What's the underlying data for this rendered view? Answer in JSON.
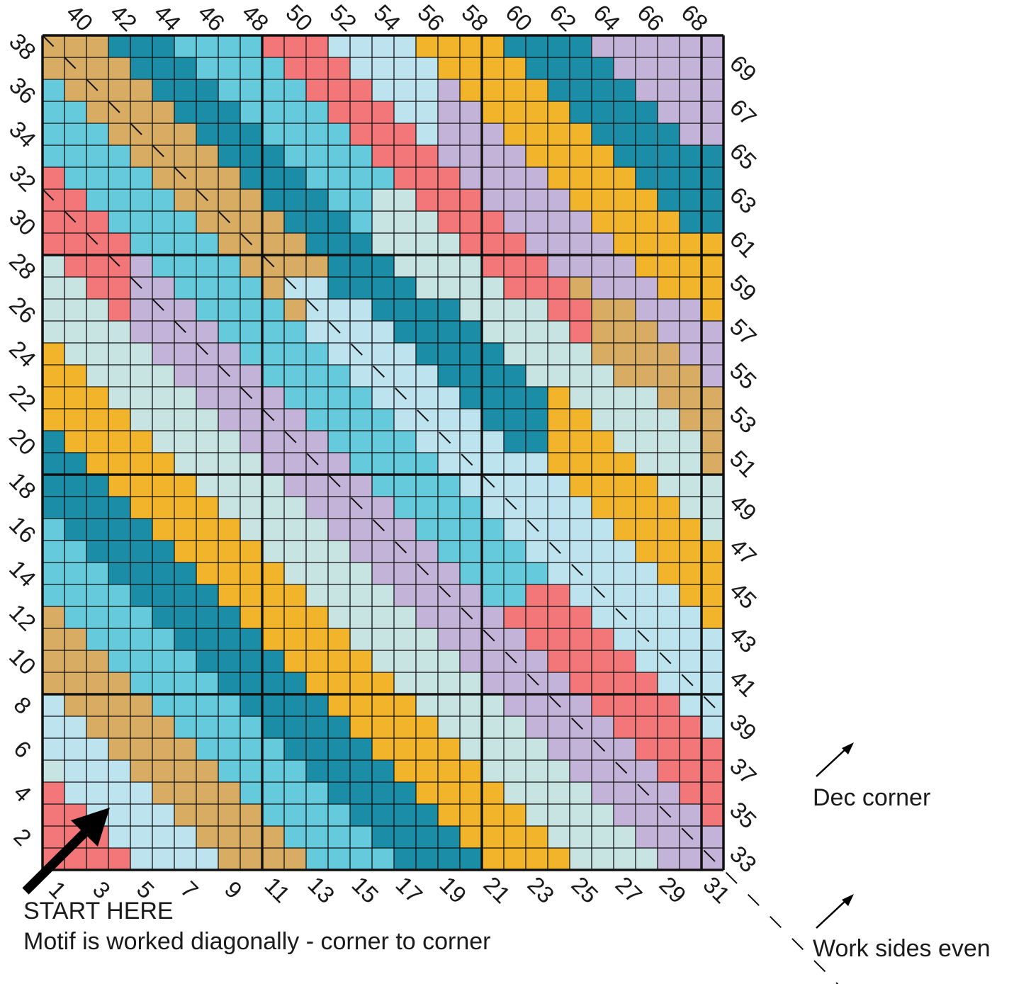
{
  "palette": {
    "T": "#d8ad63",
    "D": "#1b8da6",
    "C": "#66cadd",
    "R": "#f37778",
    "L": "#bde3ef",
    "M": "#c7e3e2",
    "P": "#c4b3d8",
    "Y": "#f2b42a",
    "grid": "#111111",
    "text": "#1a1a1a"
  },
  "grid_rows": [
    "TTTDDDCCCCRRRLLLLYYYYDDDDPPPPPP",
    "TTTTDDDCCCCRRRLLLLYYYYDDDDPPPPP",
    "CTTTTDDDCCCCRRRLLLPYYYYDDDDPPPP",
    "CCTTTTDDDCCCCRRRLLPPYYYYDDDDPPP",
    "CCCTTTTDDDCCCCRRRLPPPYYYYDDDDPP",
    "CCCCTTTTDDDCCCCRRRPPPPYYYYDDDDD",
    "RCCCCTTTTDDDCCCCRRRPPPPYYYYDDDD",
    "RRCCCCTTTTDDDCCMMRRRPPPPYYYYDDD",
    "RRRCCCCTTTTDDDCMMMRRRPPPPYYYYDD",
    "RRRRCCCCTTTTDDDMMMMRRRPPPPYYYYY",
    "MRRRPCCCCTTTTDDDMMMMRRRPPPPYYYY",
    "MMRRPPCCCCTLLDDDDMMMMRRRTPPPYYY",
    "MMMRPPPCCCCTLLLDDDDMMMMRRTTPPPY",
    "MMMMPPPPCCCCLLLLDDDDMMMMRTTTPPP",
    "YMMMMPPPPCCCCLLLLDDDDMMMMTTTTPP",
    "YYMMMMPPPPCCCCLLLLDDDDMMMMTTTTP",
    "YYYMMMMPPPPCCCCLLLLDDDDYMMMMTTT",
    "YYYYMMMMPPPPCCCCLLLLDDDYYMMMMTT",
    "DYYYYMMMMPPPPCCCCLLLLDDYYYMMMMT",
    "DDYYYYMMMMPPPPCCCCLLLLLYYYYMMMT",
    "DDDYYYYMMMMPPPPCCCCLLLLLYYYYMMM",
    "DDDDYYYYMMMMPPPPCCCCLLLLLYYYYMM",
    "CDDDDYYYYMMMMPPPPCCCCLLLLLYYYYM",
    "CCDDDDYYYYMMMMPPPPCCCCLLLLLYYYY",
    "CCCDDDDYYYYMMMMPPPPCCCCLLLLLYYY",
    "CCCCDDDDYYYYMMMMPPPPCCRRLLLLLYY",
    "TCCCCDDDDYYYYMMMMPPPPRRRRLLLLLY",
    "TTCCCCDDDDYYYYMMMMPPPPRRRRLLLLL",
    "TTTCCCCDDDDYYYYMMMMPPPPRRRRLLLL",
    "TTTTCCCCDDDDYYYYMMMMPPPPRRRRLLL",
    "LTTTTCCCCDDDDYYYYMMMMPPPPRRRRLL",
    "LLTTTTCCCCDDDDYYYYMMMMPPPPRRRRL",
    "LLLTTTTCCCCDDDDYYYYMMMMPPPPRRRR",
    "MLLLTTTTCCCCDDDDYYYYMMMMPPPPRRR",
    "RLLLLTTTTCCCCDDDDYYYYMMMMPPPPRR",
    "RRLLLLTTTTCCCCDDDDYYYYMMMMPPPPR",
    "RRRLLLLTTTTCCCCDDDDYYYYMMMMPPPP",
    "RRRRLLLLTTTTCCCCDDDDYYYYMMMMPPP"
  ],
  "labels": {
    "top": [
      "40",
      "42",
      "44",
      "46",
      "48",
      "50",
      "52",
      "54",
      "56",
      "58",
      "60",
      "62",
      "64",
      "66",
      "68"
    ],
    "left": [
      "38",
      "36",
      "34",
      "32",
      "30",
      "28",
      "26",
      "24",
      "22",
      "20",
      "18",
      "16",
      "14",
      "12",
      "10",
      "8",
      "6",
      "4",
      "2"
    ],
    "right": [
      "69",
      "67",
      "65",
      "63",
      "61",
      "59",
      "57",
      "55",
      "53",
      "51",
      "49",
      "47",
      "45",
      "43",
      "41",
      "39",
      "37",
      "35",
      "33"
    ],
    "bottom": [
      "1",
      "3",
      "5",
      "7",
      "9",
      "11",
      "13",
      "15",
      "17",
      "19",
      "21",
      "23",
      "25",
      "27",
      "29",
      "31"
    ]
  },
  "annotations": {
    "start": "START HERE",
    "motif": "Motif is worked diagonally - corner to corner",
    "dec_corner": "Dec corner",
    "work_even": "Work sides even"
  }
}
